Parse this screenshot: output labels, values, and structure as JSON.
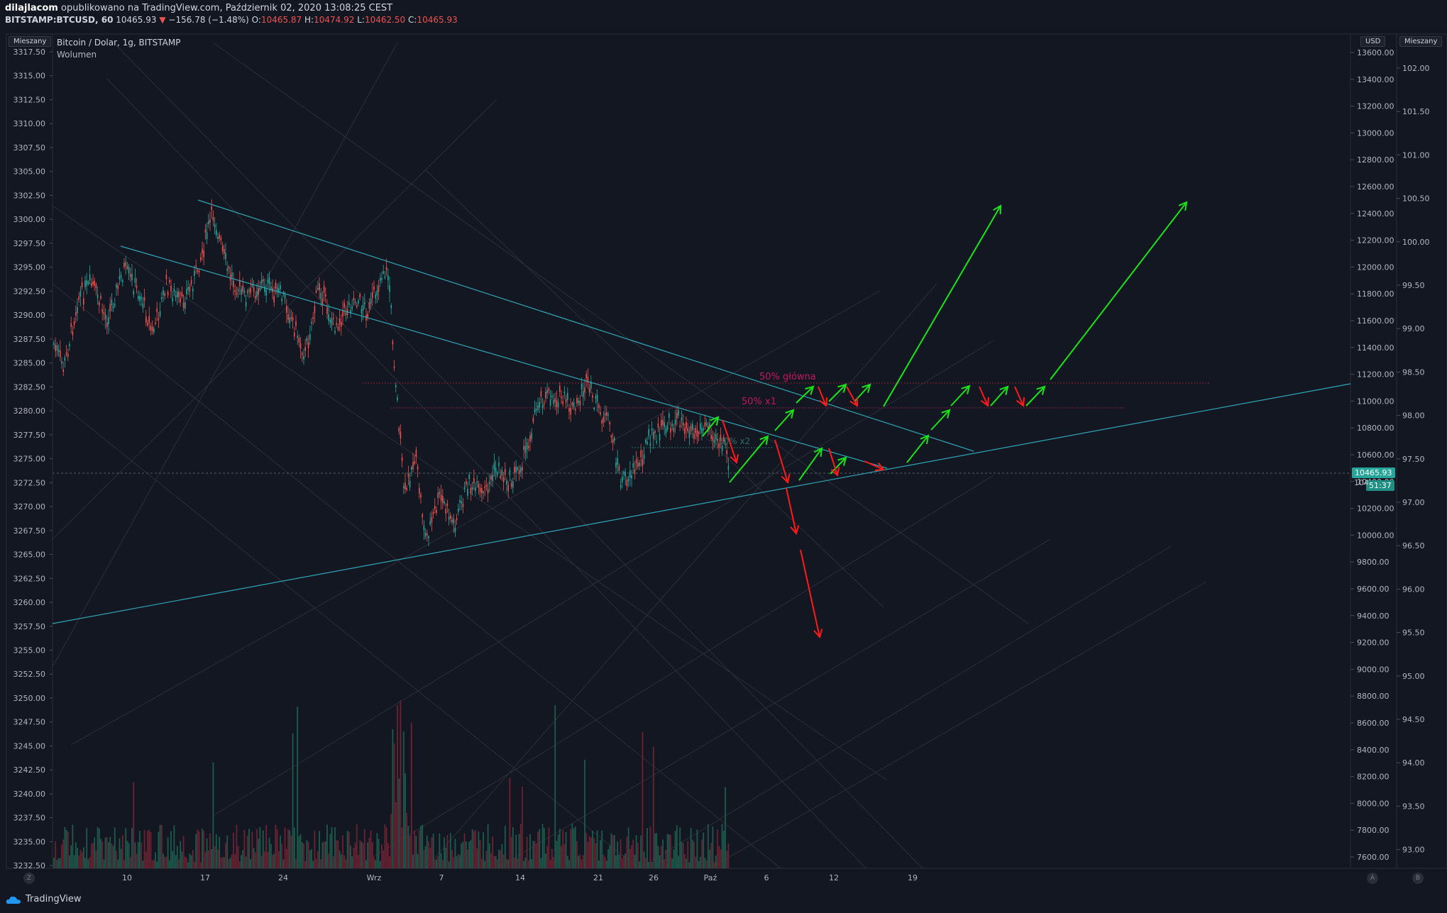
{
  "header": {
    "author": "dilajlacom",
    "published_text": "opublikowano na TradingView.com, Październik 02, 2020 13:08:25 CEST",
    "symbol": "BITSTAMP:BTCUSD, 60",
    "last": "10465.93",
    "change_arrow": "▼",
    "change": "−156.78 (−1.48%)",
    "o_label": "O:",
    "o": "10465.87",
    "h_label": "H:",
    "h": "10474.92",
    "l_label": "L:",
    "l": "10462.50",
    "c_label": "C:",
    "c": "10465.93"
  },
  "legend": {
    "title": "Bitcoin / Dolar, 1g, BITSTAMP",
    "volume": "Wolumen"
  },
  "buttons": {
    "left_scale": "Mieszany",
    "right_scale": "Mieszany",
    "currency": "USD",
    "z": "Z",
    "a": "A",
    "b": "B"
  },
  "axes": {
    "left": [
      "3317.50",
      "3315.00",
      "3312.50",
      "3310.00",
      "3307.50",
      "3305.00",
      "3302.50",
      "3300.00",
      "3297.50",
      "3295.00",
      "3292.50",
      "3290.00",
      "3287.50",
      "3285.00",
      "3282.50",
      "3280.00",
      "3277.50",
      "3275.00",
      "3272.50",
      "3270.00",
      "3267.50",
      "3265.00",
      "3262.50",
      "3260.00",
      "3257.50",
      "3255.00",
      "3252.50",
      "3250.00",
      "3247.50",
      "3245.00",
      "3242.50",
      "3240.00",
      "3237.50",
      "3235.00",
      "3232.50"
    ],
    "price": [
      "13600.00",
      "13400.00",
      "13200.00",
      "13000.00",
      "12800.00",
      "12600.00",
      "12400.00",
      "12200.00",
      "12000.00",
      "11800.00",
      "11600.00",
      "11400.00",
      "11200.00",
      "11000.00",
      "10800.00",
      "10600.00",
      "10400.00",
      "10200.00",
      "10000.00",
      "9800.00",
      "9600.00",
      "9400.00",
      "9200.00",
      "9000.00",
      "8800.00",
      "8600.00",
      "8400.00",
      "8200.00",
      "8000.00",
      "7800.00",
      "7600.00"
    ],
    "right": [
      "102.00",
      "101.50",
      "101.00",
      "100.50",
      "100.00",
      "99.50",
      "99.00",
      "98.50",
      "98.00",
      "97.50",
      "97.00",
      "96.50",
      "96.00",
      "95.50",
      "95.00",
      "94.50",
      "94.00",
      "93.50",
      "93.00"
    ],
    "time": [
      "10",
      "17",
      "24",
      "Wrz",
      "7",
      "14",
      "21",
      "26",
      "Paź",
      "6",
      "12",
      "19"
    ]
  },
  "price_tags": {
    "last": "10465.93",
    "countdown": "51:37",
    "hidden": "104"
  },
  "annotations": {
    "main": "50% główna",
    "x1": "50% x1",
    "x2": "50% x2"
  },
  "colors": {
    "bull": "#26a69a",
    "bear": "#ef5350",
    "trend": "#2fa5b5",
    "arrow_up": "#19e319",
    "arrow_down": "#ff1a1a",
    "level": "#c2185b"
  },
  "footer": {
    "brand": "TradingView"
  }
}
